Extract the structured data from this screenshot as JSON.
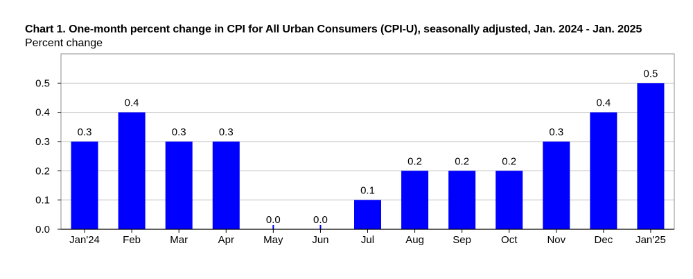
{
  "chart_data": {
    "type": "bar",
    "title": "Chart 1. One-month percent change in CPI for All Urban Consumers (CPI-U), seasonally adjusted, Jan. 2024 - Jan. 2025",
    "ylabel": "Percent change",
    "categories": [
      "Jan'24",
      "Feb",
      "Mar",
      "Apr",
      "May",
      "Jun",
      "Jul",
      "Aug",
      "Sep",
      "Oct",
      "Nov",
      "Dec",
      "Jan'25"
    ],
    "values": [
      0.3,
      0.4,
      0.3,
      0.3,
      0.0,
      0.0,
      0.1,
      0.2,
      0.2,
      0.2,
      0.3,
      0.4,
      0.5
    ],
    "data_labels": [
      "0.3",
      "0.4",
      "0.3",
      "0.3",
      "0.0",
      "0.0",
      "0.1",
      "0.2",
      "0.2",
      "0.2",
      "0.3",
      "0.4",
      "0.5"
    ],
    "ylim": [
      0,
      0.6
    ],
    "yticks": [
      0.0,
      0.1,
      0.2,
      0.3,
      0.4,
      0.5
    ],
    "ytick_labels": [
      "0.0",
      "0.1",
      "0.2",
      "0.3",
      "0.4",
      "0.5"
    ],
    "grid": true,
    "legend": "none",
    "bar_color": "#0000ff"
  }
}
